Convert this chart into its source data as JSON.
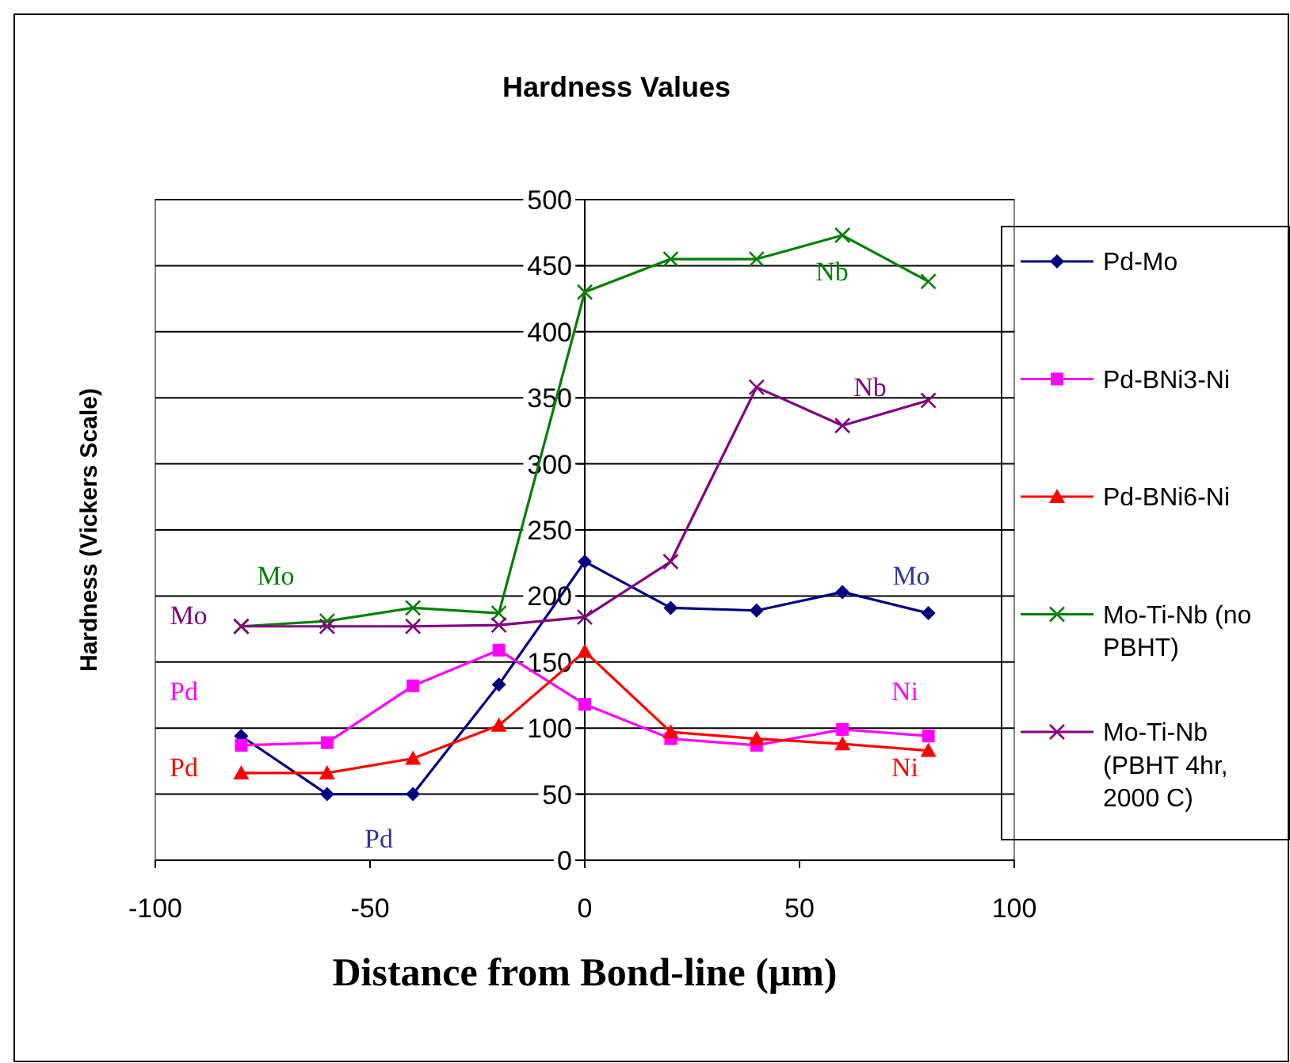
{
  "chart_data": {
    "type": "line",
    "title": "Hardness Values",
    "xlabel": "Distance from Bond-line (μm)",
    "ylabel": "Hardness (Vickers Scale)",
    "x": [
      -80,
      -60,
      -40,
      -20,
      0,
      20,
      40,
      60,
      80
    ],
    "xlim": [
      -100,
      100
    ],
    "xticks": [
      -100,
      -50,
      0,
      50,
      100
    ],
    "ylim": [
      0,
      500
    ],
    "yticks": [
      0,
      50,
      100,
      150,
      200,
      250,
      300,
      350,
      400,
      450,
      500
    ],
    "grid": "y",
    "legend": "right",
    "series": [
      {
        "name": "Pd-Mo",
        "color": "#000080",
        "marker": "diamond",
        "values": [
          94,
          50,
          50,
          133,
          226,
          191,
          189,
          203,
          187
        ]
      },
      {
        "name": "Pd-BNi3-Ni",
        "color": "#ff00ff",
        "marker": "square",
        "values": [
          87,
          89,
          132,
          159,
          118,
          92,
          87,
          99,
          94
        ]
      },
      {
        "name": "Pd-BNi6-Ni",
        "color": "#ff0000",
        "marker": "triangle",
        "values": [
          66,
          66,
          77,
          102,
          158,
          97,
          92,
          88,
          83
        ]
      },
      {
        "name": "Mo-Ti-Nb (no PBHT)",
        "color": "#008000",
        "marker": "cross",
        "values": [
          177,
          181,
          191,
          187,
          430,
          455,
          455,
          473,
          438
        ]
      },
      {
        "name": "Mo-Ti-Nb (PBHT 4hr, 2000 C)",
        "color": "#800080",
        "marker": "cross",
        "values": [
          177,
          177,
          177,
          178,
          184,
          226,
          358,
          329,
          348
        ]
      }
    ],
    "annotations": [
      "Mo",
      "Mo",
      "Pd",
      "Pd",
      "Pd",
      "Mo",
      "Ni",
      "Ni",
      "Nb",
      "Nb"
    ]
  }
}
